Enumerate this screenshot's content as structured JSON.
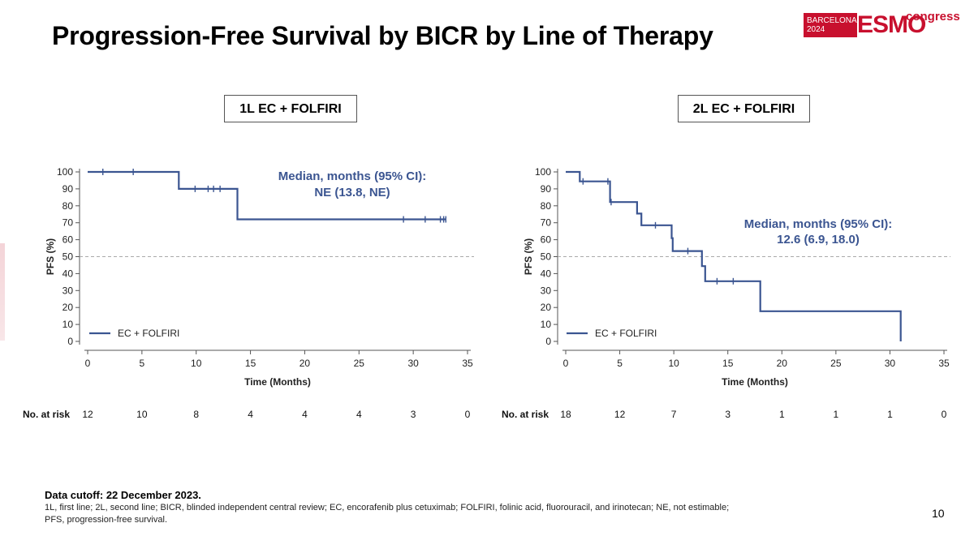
{
  "header": {
    "title": "Progression-Free Survival by BICR by Line of Therapy",
    "logo": {
      "city": "BARCELONA",
      "year": "2024",
      "brand": "ESMO",
      "tag": "congress"
    },
    "brand_color": "#c8102e"
  },
  "colors": {
    "curve": "#3b5591",
    "median_text": "#3b5591",
    "reference_line": "#aaaaaa"
  },
  "chart_data": [
    {
      "type": "line",
      "panel_title": "1L EC + FOLFIRI",
      "xlabel": "Time (Months)",
      "ylabel": "PFS (%)",
      "xlim": [
        0,
        35
      ],
      "ylim": [
        0,
        100
      ],
      "x_ticks": [
        0,
        5,
        10,
        15,
        20,
        25,
        30,
        35
      ],
      "y_ticks": [
        0,
        10,
        20,
        30,
        40,
        50,
        60,
        70,
        80,
        90,
        100
      ],
      "reference_line_y": 50,
      "series": [
        {
          "name": "EC + FOLFIRI",
          "step_points": [
            [
              0,
              100
            ],
            [
              8.4,
              100
            ],
            [
              8.4,
              90
            ],
            [
              13.8,
              90
            ],
            [
              13.8,
              72
            ],
            [
              33,
              72
            ]
          ],
          "censor_points": [
            [
              1.4,
              100
            ],
            [
              4.2,
              100
            ],
            [
              9.9,
              90
            ],
            [
              11.1,
              90
            ],
            [
              11.6,
              90
            ],
            [
              12.2,
              90
            ],
            [
              29.1,
              72
            ],
            [
              31.1,
              72
            ],
            [
              32.5,
              72
            ],
            [
              32.8,
              72
            ],
            [
              33.0,
              72
            ]
          ]
        }
      ],
      "median_annotation": [
        "Median, months (95% CI):",
        "NE (13.8, NE)"
      ],
      "risk_table": {
        "label": "No. at risk",
        "times": [
          0,
          5,
          10,
          15,
          20,
          25,
          30,
          35
        ],
        "values": [
          "12",
          "10",
          "8",
          "4",
          "4",
          "4",
          "3",
          "0"
        ]
      }
    },
    {
      "type": "line",
      "panel_title": "2L EC + FOLFIRI",
      "xlabel": "Time (Months)",
      "ylabel": "PFS (%)",
      "xlim": [
        0,
        35
      ],
      "ylim": [
        0,
        100
      ],
      "x_ticks": [
        0,
        5,
        10,
        15,
        20,
        25,
        30,
        35
      ],
      "y_ticks": [
        0,
        10,
        20,
        30,
        40,
        50,
        60,
        70,
        80,
        90,
        100
      ],
      "reference_line_y": 50,
      "series": [
        {
          "name": "EC + FOLFIRI",
          "step_points": [
            [
              0,
              100
            ],
            [
              1.3,
              100
            ],
            [
              1.3,
              94.4
            ],
            [
              4.1,
              94.4
            ],
            [
              4.1,
              82.2
            ],
            [
              6.6,
              82.2
            ],
            [
              6.6,
              75.4
            ],
            [
              7.0,
              75.4
            ],
            [
              7.0,
              68.5
            ],
            [
              9.8,
              68.5
            ],
            [
              9.8,
              60.9
            ],
            [
              9.9,
              60.9
            ],
            [
              9.9,
              53.3
            ],
            [
              12.6,
              53.3
            ],
            [
              12.6,
              44.4
            ],
            [
              12.9,
              44.4
            ],
            [
              12.9,
              35.5
            ],
            [
              18.0,
              35.5
            ],
            [
              18.0,
              17.8
            ],
            [
              31.0,
              17.8
            ],
            [
              31.0,
              0
            ]
          ],
          "censor_points": [
            [
              1.6,
              94.4
            ],
            [
              3.9,
              94.4
            ],
            [
              4.2,
              82.2
            ],
            [
              8.3,
              68.5
            ],
            [
              11.3,
              53.3
            ],
            [
              14.0,
              35.5
            ],
            [
              15.5,
              35.5
            ]
          ]
        }
      ],
      "median_annotation": [
        "Median, months (95% CI):",
        "12.6 (6.9, 18.0)"
      ],
      "risk_table": {
        "label": "No. at risk",
        "times": [
          0,
          5,
          10,
          15,
          20,
          25,
          30,
          35
        ],
        "values": [
          "18",
          "12",
          "7",
          "3",
          "1",
          "1",
          "1",
          "0"
        ]
      }
    }
  ],
  "footer": {
    "cutoff": "Data cutoff: 22 December 2023.",
    "abbr_line1": "1L, first line; 2L, second line; BICR, blinded independent central review; EC, encorafenib plus cetuximab; FOLFIRI, folinic acid, fluorouracil, and irinotecan; NE, not estimable;",
    "abbr_line2": "PFS, progression-free survival.",
    "page_number": "10"
  }
}
